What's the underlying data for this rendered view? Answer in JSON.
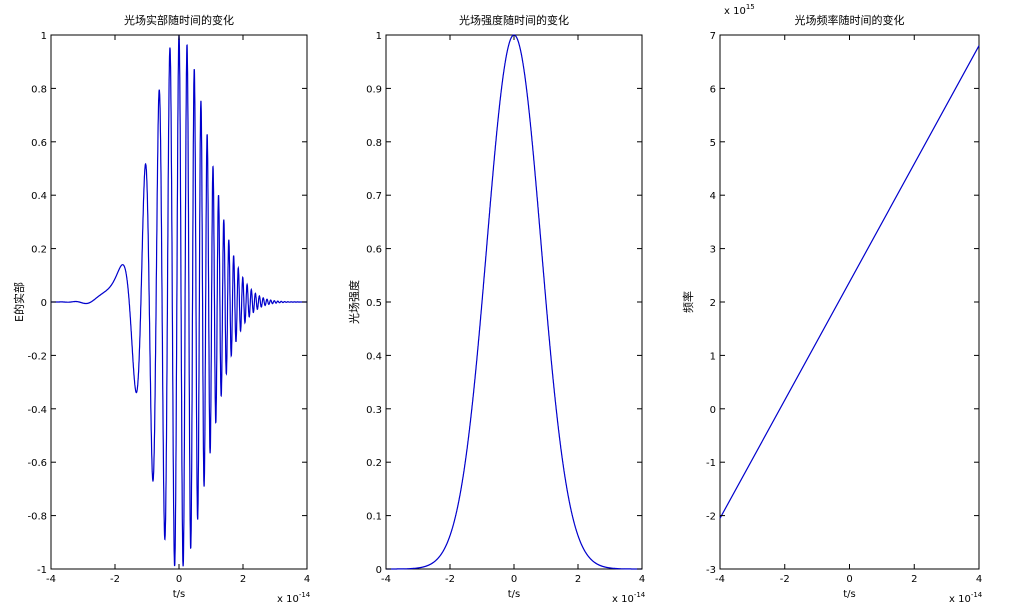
{
  "chart_data": [
    {
      "type": "line",
      "title": "光场实部随时间的变化",
      "xlabel": "t/s",
      "ylabel": "E的实部",
      "x_multiplier": "x 10",
      "x_exponent": "-14",
      "xlim": [
        -4,
        4
      ],
      "ylim": [
        -1,
        1
      ],
      "xticks": [
        "-4",
        "-2",
        "0",
        "2",
        "4"
      ],
      "yticks": [
        "-1",
        "-0.8",
        "-0.6",
        "-0.4",
        "-0.2",
        "0",
        "0.2",
        "0.4",
        "0.6",
        "0.8",
        "1"
      ],
      "grid": false,
      "series": [
        {
          "color": "#0000cc",
          "model": "exp(-0.6*t^2)*cos(23.7*t+5.5*t^2)",
          "x_range": [
            -4,
            4
          ]
        }
      ]
    },
    {
      "type": "line",
      "title": "光场强度随时间的变化",
      "xlabel": "t/s",
      "ylabel": "光场强度",
      "x_multiplier": "x 10",
      "x_exponent": "-14",
      "xlim": [
        -4,
        4
      ],
      "ylim": [
        0,
        1
      ],
      "xticks": [
        "-4",
        "-2",
        "0",
        "2",
        "4"
      ],
      "yticks": [
        "0",
        "0.1",
        "0.2",
        "0.3",
        "0.4",
        "0.5",
        "0.6",
        "0.7",
        "0.8",
        "0.9",
        "1"
      ],
      "grid": false,
      "series": [
        {
          "color": "#0000cc",
          "model": "exp(-0.693*t^2)",
          "x_range": [
            -4,
            4
          ]
        }
      ]
    },
    {
      "type": "line",
      "title": "光场频率随时间的变化",
      "xlabel": "t/s",
      "ylabel": "频率",
      "x_multiplier": "x 10",
      "x_exponent": "-14",
      "y_multiplier": "x 10",
      "y_exponent": "15",
      "xlim": [
        -4,
        4
      ],
      "ylim": [
        -3,
        7
      ],
      "xticks": [
        "-4",
        "-2",
        "0",
        "2",
        "4"
      ],
      "yticks": [
        "-3",
        "-2",
        "-1",
        "0",
        "1",
        "2",
        "3",
        "4",
        "5",
        "6",
        "7"
      ],
      "grid": false,
      "series": [
        {
          "color": "#0000cc",
          "x": [
            -4,
            4
          ],
          "y": [
            -2.05,
            6.8
          ]
        }
      ]
    }
  ]
}
